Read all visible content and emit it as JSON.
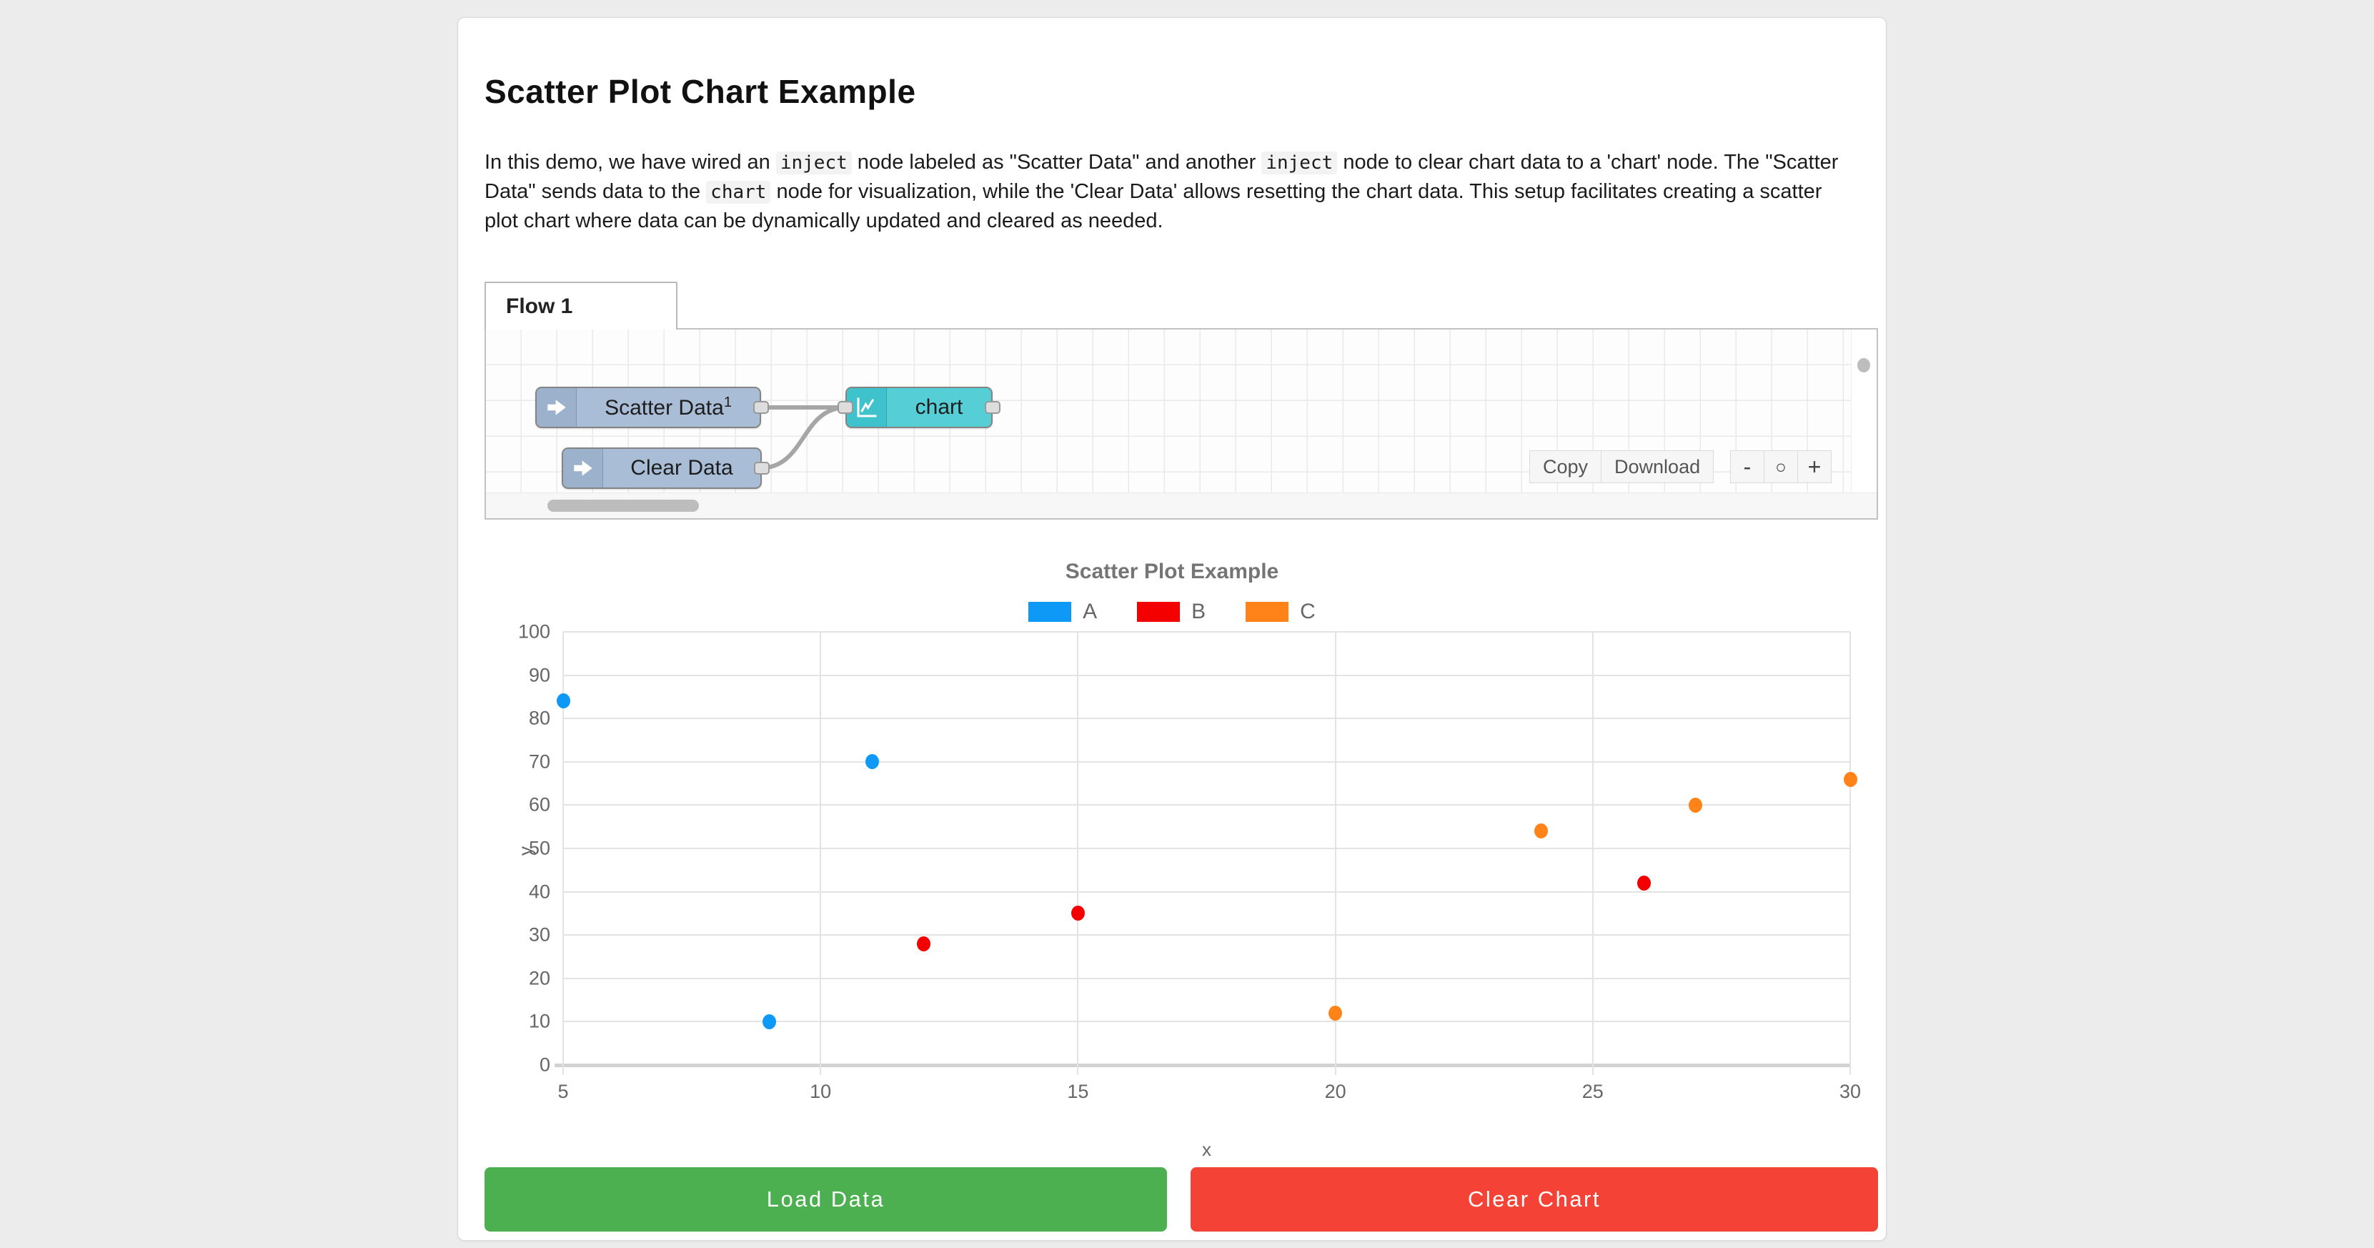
{
  "header": {
    "title": "Scatter Plot Chart Example"
  },
  "description": {
    "segments": [
      {
        "t": "text",
        "v": "In this demo, we have wired an "
      },
      {
        "t": "code",
        "v": "inject"
      },
      {
        "t": "text",
        "v": " node labeled as \"Scatter Data\" and another "
      },
      {
        "t": "code",
        "v": "inject"
      },
      {
        "t": "text",
        "v": " node to clear chart data to a 'chart' node. The \"Scatter Data\" sends data to the "
      },
      {
        "t": "code",
        "v": "chart"
      },
      {
        "t": "text",
        "v": " node for visualization, while the 'Clear Data' allows resetting the chart data. This setup facilitates creating a scatter plot chart where data can be dynamically updated and cleared as needed."
      }
    ]
  },
  "flow_editor": {
    "tab_label": "Flow 1",
    "nodes": {
      "scatter_inject": {
        "label": "Scatter Data",
        "badge": "1"
      },
      "clear_inject": {
        "label": "Clear Data"
      },
      "chart": {
        "label": "chart"
      }
    },
    "toolbar": {
      "copy_label": "Copy",
      "download_label": "Download"
    },
    "zoom_controls": {
      "zoom_out": "-",
      "zoom_reset": "○",
      "zoom_in": "+"
    }
  },
  "chart_data": {
    "type": "scatter",
    "title": "Scatter Plot Example",
    "xlabel": "x",
    "ylabel": "y",
    "xlim": [
      5,
      30
    ],
    "ylim": [
      0,
      100
    ],
    "x_ticks": [
      5,
      10,
      15,
      20,
      25,
      30
    ],
    "y_ticks": [
      0,
      10,
      20,
      30,
      40,
      50,
      60,
      70,
      80,
      90,
      100
    ],
    "grid": true,
    "legend_position": "top",
    "series": [
      {
        "name": "A",
        "color": "#0f99f7",
        "points": [
          [
            5,
            84
          ],
          [
            9,
            10
          ],
          [
            11,
            70
          ]
        ]
      },
      {
        "name": "B",
        "color": "#f50000",
        "points": [
          [
            12,
            28
          ],
          [
            15,
            35
          ],
          [
            26,
            42
          ]
        ]
      },
      {
        "name": "C",
        "color": "#ff8318",
        "points": [
          [
            20,
            12
          ],
          [
            24,
            54
          ],
          [
            27,
            60
          ],
          [
            30,
            66
          ]
        ]
      }
    ]
  },
  "actions": {
    "load_label": "Load Data",
    "load_color": "#4caf50",
    "clear_label": "Clear Chart",
    "clear_color": "#f44336"
  }
}
